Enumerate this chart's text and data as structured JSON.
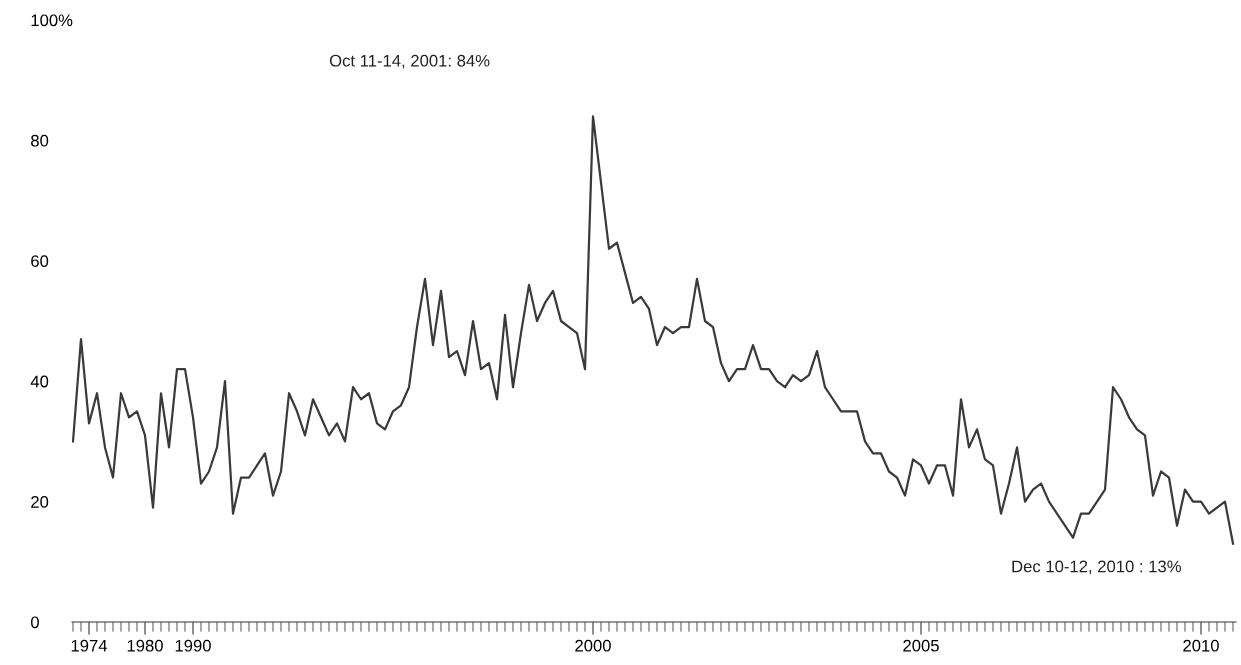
{
  "chart_data": {
    "type": "line",
    "categories": [
      null,
      null,
      "1974",
      null,
      null,
      null,
      null,
      null,
      null,
      "1980",
      null,
      null,
      null,
      null,
      null,
      "1990",
      null,
      null,
      null,
      null,
      null,
      null,
      null,
      null,
      null,
      null,
      null,
      null,
      null,
      null,
      null,
      null,
      null,
      null,
      null,
      null,
      null,
      null,
      null,
      null,
      null,
      null,
      null,
      null,
      null,
      null,
      null,
      null,
      null,
      null,
      null,
      null,
      null,
      null,
      null,
      null,
      null,
      null,
      null,
      null,
      null,
      null,
      null,
      null,
      null,
      "2000",
      null,
      null,
      null,
      null,
      null,
      null,
      null,
      null,
      null,
      null,
      null,
      null,
      null,
      null,
      null,
      null,
      null,
      null,
      null,
      null,
      null,
      null,
      null,
      null,
      null,
      null,
      null,
      null,
      null,
      null,
      null,
      null,
      null,
      null,
      null,
      null,
      null,
      null,
      null,
      null,
      "2005",
      null,
      null,
      null,
      null,
      null,
      null,
      null,
      null,
      null,
      null,
      null,
      null,
      null,
      null,
      null,
      null,
      null,
      null,
      null,
      null,
      null,
      null,
      null,
      null,
      null,
      null,
      null,
      null,
      null,
      null,
      null,
      null,
      null,
      null,
      "2010",
      null,
      null,
      null,
      null
    ],
    "values": [
      30,
      47,
      33,
      38,
      29,
      24,
      38,
      34,
      35,
      31,
      19,
      38,
      29,
      42,
      42,
      34,
      23,
      25,
      29,
      40,
      18,
      24,
      24,
      26,
      28,
      21,
      25,
      38,
      35,
      31,
      37,
      34,
      31,
      33,
      30,
      39,
      37,
      38,
      33,
      32,
      35,
      36,
      39,
      49,
      57,
      46,
      55,
      44,
      45,
      41,
      50,
      42,
      43,
      37,
      51,
      39,
      48,
      56,
      50,
      53,
      55,
      50,
      49,
      48,
      42,
      84,
      73,
      62,
      63,
      58,
      53,
      54,
      52,
      46,
      49,
      48,
      49,
      49,
      57,
      50,
      49,
      43,
      40,
      42,
      42,
      46,
      42,
      42,
      40,
      39,
      41,
      40,
      41,
      45,
      39,
      37,
      35,
      35,
      35,
      30,
      28,
      28,
      25,
      24,
      21,
      27,
      26,
      23,
      26,
      26,
      21,
      37,
      29,
      32,
      27,
      26,
      18,
      23,
      29,
      20,
      22,
      23,
      20,
      18,
      16,
      14,
      18,
      18,
      20,
      22,
      39,
      37,
      34,
      32,
      31,
      21,
      25,
      24,
      16,
      22,
      20,
      20,
      18,
      19,
      20,
      13
    ],
    "color": "#3a3a3a",
    "ylim": [
      0,
      100
    ],
    "yticks": [
      0,
      20,
      40,
      60,
      80,
      {
        "value": 100,
        "label": "100%"
      }
    ],
    "annotations": [
      "Oct 11-14, 2001: 84%",
      "Dec 10-12, 2010 : 13%"
    ],
    "grid": false
  }
}
